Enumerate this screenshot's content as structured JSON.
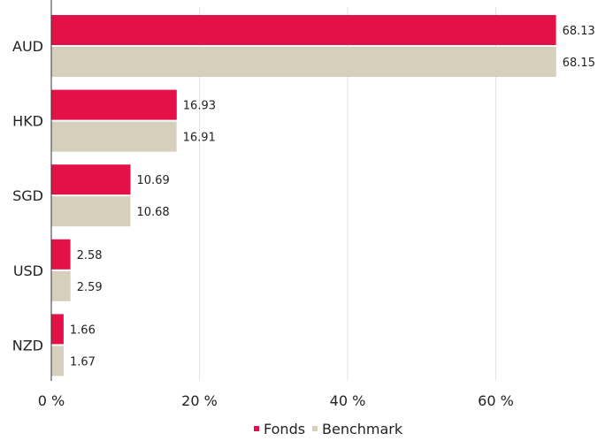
{
  "chart_data": {
    "type": "bar",
    "orientation": "horizontal",
    "categories": [
      "AUD",
      "HKD",
      "SGD",
      "USD",
      "NZD"
    ],
    "series": [
      {
        "name": "Fonds",
        "values": [
          68.13,
          16.93,
          10.69,
          2.58,
          1.66
        ],
        "labels": [
          "68.13",
          "16.93",
          "10.69",
          "2.58",
          "1.66"
        ],
        "color": "#e31148"
      },
      {
        "name": "Benchmark",
        "values": [
          68.15,
          16.91,
          10.68,
          2.59,
          1.67
        ],
        "labels": [
          "68.15",
          "16.91",
          "10.68",
          "2.59",
          "1.67"
        ],
        "color": "#d5cfbc"
      }
    ],
    "xlim": [
      0,
      75
    ],
    "xticks": [
      0,
      20,
      40,
      60
    ],
    "xtick_labels": [
      "0 %",
      "20 %",
      "40 %",
      "60 %"
    ],
    "grid": "vertical",
    "legend_position": "bottom-center",
    "title": "",
    "xlabel": "",
    "ylabel": ""
  },
  "colors": {
    "grid": "#e3e3e3",
    "axis": "#333333"
  }
}
